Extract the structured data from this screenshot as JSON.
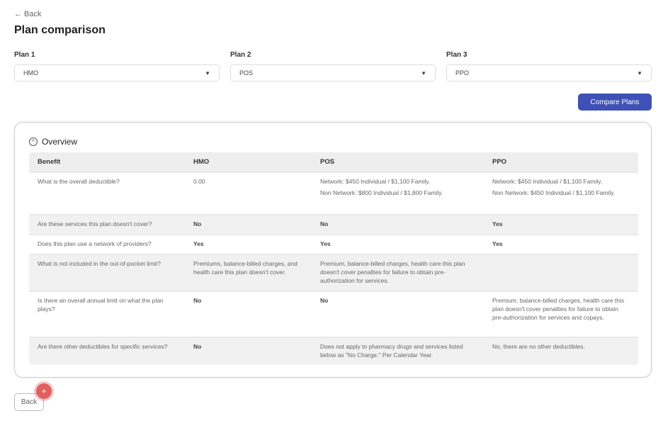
{
  "header": {
    "back_label": "← Back",
    "title": "Plan comparison"
  },
  "plans": [
    {
      "label": "Plan 1",
      "value": "HMO"
    },
    {
      "label": "Plan 2",
      "value": "POS"
    },
    {
      "label": "Plan 3",
      "value": "PPO"
    }
  ],
  "compare_label": "Compare Plans",
  "overview": {
    "title": "Overview",
    "columns": [
      "Benefit",
      "HMO",
      "POS",
      "PPO"
    ],
    "rows": [
      {
        "benefit": "What is the overall deductible?",
        "hmo": "0.00",
        "pos": [
          "Network: $450 Individual / $1,100 Family.",
          "Non Network: $800 Individual / $1,800 Family."
        ],
        "ppo": [
          "Network: $450 Individual / $1,100 Family.",
          "Non Network: $450 Individual / $1,100 Family."
        ]
      },
      {
        "benefit": "Are these services this plan doesn't cover?",
        "hmo": "No",
        "pos": "No",
        "ppo": "Yes"
      },
      {
        "benefit": "Does this plan use a network of providers?",
        "hmo": "Yes",
        "pos": "Yes",
        "ppo": "Yes"
      },
      {
        "benefit": "What is not included in the out-of-pocket limit?",
        "hmo": "Premiums, balance-billed charges, and health care this plan doesn't cover.",
        "pos": "Premium, balance-billed charges, health care this plan doesn't cover penalties for failure to obtain pre-authorization for services.",
        "ppo": ""
      },
      {
        "benefit": "Is there an overall annual limit on what the plan plays?",
        "hmo": "No",
        "pos": "No",
        "ppo": "Premium, balance-billed charges, health care this plan doesn't cover penalties for failure to obtain pre-authorization for services and copays."
      },
      {
        "benefit": "Are there other deductibles for specific services?",
        "hmo": "No",
        "pos": "Does not apply to pharmacy drugs and services listed below as \"No Charge.\" Per Calendar Year.",
        "ppo": "No, there are no other deductibles."
      }
    ]
  },
  "back_button": "Back",
  "colors": {
    "accent": "#3f51b5",
    "marker": "#e06060"
  }
}
